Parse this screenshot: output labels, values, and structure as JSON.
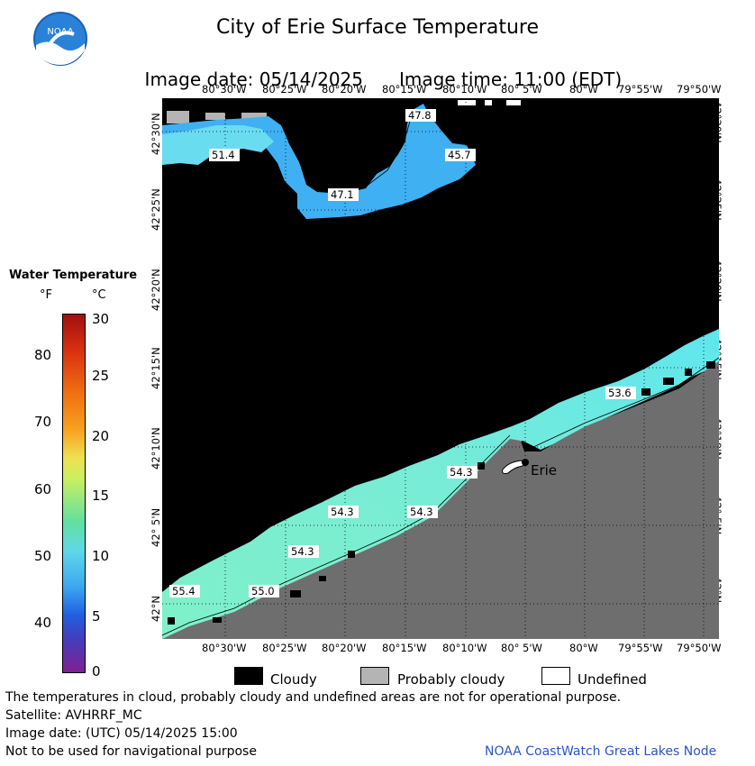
{
  "title": "City of Erie Surface Temperature",
  "image_date": "Image date: 05/14/2025",
  "image_time": "Image time: 11:00 (EDT)",
  "logo": {
    "text": "NOAA",
    "icon": "noaa-logo"
  },
  "lon_ticks": [
    "80°30'W",
    "80°25'W",
    "80°20'W",
    "80°15'W",
    "80°10'W",
    "80° 5'W",
    "80°W",
    "79°55'W",
    "79°50'W"
  ],
  "lat_ticks": [
    "42°30'N",
    "42°25'N",
    "42°20'N",
    "42°15'N",
    "42°10'N",
    "42° 5'N",
    "42°N"
  ],
  "scale": {
    "title": "Water Temperature",
    "unit_f": "°F",
    "unit_c": "°C",
    "f_values": [
      "80",
      "70",
      "60",
      "50",
      "40"
    ],
    "c_values": [
      "30",
      "25",
      "20",
      "15",
      "10",
      "5",
      "0"
    ]
  },
  "legend": {
    "cloudy": "Cloudy",
    "probably_cloudy": "Probably cloudy",
    "undefined": "Undefined"
  },
  "map": {
    "city": "Erie",
    "temp_labels": [
      "47.8",
      "51.4",
      "45.7",
      "47.1",
      "53.6",
      "54.3",
      "54.3",
      "54.3",
      "54.3",
      "55.4",
      "55.0"
    ]
  },
  "footer": {
    "line1": "The temperatures in cloud, probably cloudy and undefined areas are not for operational purpose.",
    "line2": "Satellite: AVHRRF_MC",
    "line3": "Image date: (UTC) 05/14/2025  15:00",
    "line4": "Not to be used for navigational purpose",
    "node": "NOAA CoastWatch Great Lakes Node"
  },
  "colors": {
    "cloudy": "#000000",
    "probably_cloudy": "#b4b4b4",
    "land": "#6e6e6e",
    "water_cool": "#39a6f0",
    "water_mid": "#5fe6ee",
    "water_warm": "#80f0c0"
  }
}
